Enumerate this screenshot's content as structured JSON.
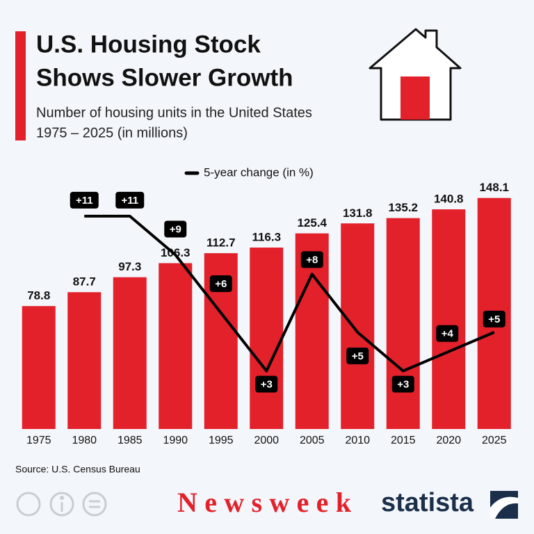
{
  "chart_data": {
    "type": "bar",
    "title": [
      "U.S. Housing Stock",
      "Shows Slower Growth"
    ],
    "subtitle": [
      "Number of housing units in the United States",
      "1975 – 2025 (in millions)"
    ],
    "categories": [
      "1975",
      "1980",
      "1985",
      "1990",
      "1995",
      "2000",
      "2005",
      "2010",
      "2015",
      "2020",
      "2025"
    ],
    "series": [
      {
        "color": "#e3212b",
        "values": [
          78.8,
          87.7,
          97.3,
          106.3,
          112.7,
          116.3,
          125.4,
          131.8,
          135.2,
          140.8,
          148.1
        ]
      },
      {
        "name": "5-year change (in %)",
        "type": "line",
        "axis": "y2",
        "color": "#000000",
        "values": [
          null,
          11,
          11,
          9,
          6,
          3,
          8,
          5,
          3,
          4,
          5
        ],
        "value_labels": [
          null,
          "+11",
          "+11",
          "+9",
          "+6",
          "+3",
          "+8",
          "+5",
          "+3",
          "+4",
          "+5"
        ]
      }
    ],
    "ylim": [
      0,
      160
    ],
    "y2lim": [
      0,
      12.9
    ],
    "legend": "top",
    "source": "Source: U.S. Census Bureau",
    "logos": [
      "Newsweek",
      "statista"
    ]
  }
}
